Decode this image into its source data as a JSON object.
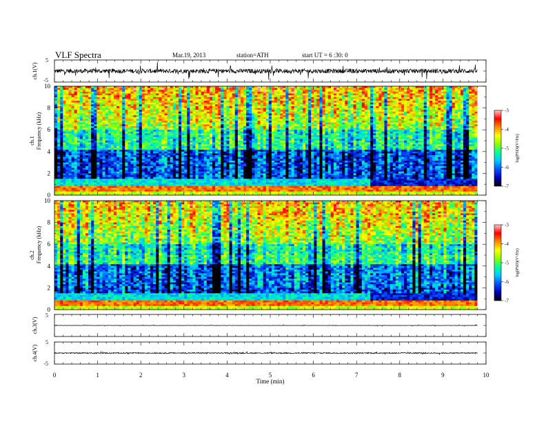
{
  "header": {
    "title": "VLF  Spectra",
    "date": "Mar.19, 2013",
    "station": "station=ATH",
    "start": "start  UT =   6  :30: 0"
  },
  "chart_data": {
    "type": "heatmap",
    "time_axis": {
      "label": "Time  (min)",
      "range": [
        0,
        10
      ],
      "ticks": [
        "0",
        "1",
        "2",
        "3",
        "4",
        "5",
        "6",
        "7",
        "8",
        "9",
        "10"
      ],
      "data_end": 9.8
    },
    "panels": [
      {
        "id": "ch1-wave",
        "type": "line",
        "ylabel": "ch.1(V)",
        "ylim": [
          -5,
          5
        ],
        "yticks": [
          "5",
          "-5"
        ],
        "baseline": 0.0,
        "noise_amplitude": 1.0,
        "spike_amplitude": 3.5
      },
      {
        "id": "ch1-spec",
        "type": "heatmap",
        "ylabel_lines": [
          "ch.1",
          "Frequency  (kHz)"
        ],
        "ylim": [
          0,
          10
        ],
        "yticks": [
          "0",
          "2",
          "4",
          "6",
          "8",
          "10"
        ],
        "colorbar": {
          "label": "log(PSD)(V²/Hz)",
          "range": [
            -7,
            -3
          ],
          "ticks": [
            "-3",
            "-4",
            "-5",
            "-6",
            "-7"
          ]
        }
      },
      {
        "id": "ch2-spec",
        "type": "heatmap",
        "ylabel_lines": [
          "ch.2",
          "Frequency  (kHz)"
        ],
        "ylim": [
          0,
          10
        ],
        "yticks": [
          "0",
          "2",
          "4",
          "6",
          "8",
          "10"
        ],
        "colorbar": {
          "label": "log(PSD)(V²/Hz)",
          "range": [
            -7,
            -3
          ],
          "ticks": [
            "-3",
            "-4",
            "-5",
            "-6",
            "-7"
          ]
        }
      },
      {
        "id": "ch3-wave",
        "type": "line",
        "ylabel": "ch.3(V)",
        "ylim": [
          -5,
          5
        ],
        "yticks": [
          "5",
          "-5"
        ],
        "baseline": 0.0,
        "noise_amplitude": 0.05,
        "spike_amplitude": 0.3
      },
      {
        "id": "ch4-wave",
        "type": "line",
        "ylabel": "ch.4(V)",
        "ylim": [
          -5,
          5
        ],
        "yticks": [
          "5",
          "-5"
        ],
        "baseline": 0.0,
        "noise_amplitude": 0.25,
        "spike_amplitude": 0.4
      }
    ],
    "colormap": [
      "#000000",
      "#0000b4",
      "#0050ff",
      "#00c8ff",
      "#00ff9c",
      "#8cff00",
      "#ffff00",
      "#ff8c00",
      "#ff0000",
      "#ffc8c8"
    ]
  }
}
